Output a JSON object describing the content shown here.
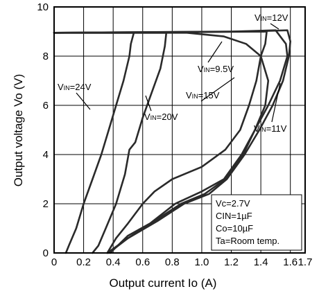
{
  "chart_data": {
    "type": "line",
    "xlabel": "Output current Io (A)",
    "ylabel": "Output voltage Vo (V)",
    "xlim": [
      0,
      1.7
    ],
    "ylim": [
      0,
      10
    ],
    "x_ticks": [
      "0",
      "0.2",
      "0.4",
      "0.6",
      "0.8",
      "1.0",
      "1.2",
      "1.4",
      "1.6",
      "1.7"
    ],
    "y_ticks": [
      "0",
      "2",
      "4",
      "6",
      "8",
      "10"
    ],
    "grid": true,
    "conditions": [
      "Vc=2.7V",
      "CIN=1µF",
      "Co=10µF",
      "Ta=Room temp."
    ],
    "series": [
      {
        "name": "VIN=24V",
        "points": [
          [
            0,
            8.95
          ],
          [
            0.3,
            8.95
          ],
          [
            0.54,
            8.95
          ],
          [
            0.52,
            8.5
          ],
          [
            0.51,
            8.0
          ],
          [
            0.47,
            7.0
          ],
          [
            0.42,
            6.0
          ],
          [
            0.37,
            5.0
          ],
          [
            0.32,
            4.0
          ],
          [
            0.26,
            3.0
          ],
          [
            0.2,
            2.0
          ],
          [
            0.15,
            1.0
          ],
          [
            0.1,
            0.3
          ],
          [
            0.08,
            0
          ]
        ]
      },
      {
        "name": "VIN=20V",
        "points": [
          [
            0,
            8.95
          ],
          [
            0.5,
            8.95
          ],
          [
            0.76,
            8.95
          ],
          [
            0.75,
            8.4
          ],
          [
            0.72,
            7.5
          ],
          [
            0.66,
            6.5
          ],
          [
            0.6,
            5.5
          ],
          [
            0.55,
            4.5
          ],
          [
            0.51,
            4.2
          ],
          [
            0.48,
            3.2
          ],
          [
            0.42,
            2.0
          ],
          [
            0.35,
            1.0
          ],
          [
            0.3,
            0.3
          ],
          [
            0.26,
            0
          ]
        ]
      },
      {
        "name": "VIN=15V",
        "points": [
          [
            0,
            8.95
          ],
          [
            1.0,
            8.98
          ],
          [
            1.44,
            9.0
          ],
          [
            1.43,
            8.5
          ],
          [
            1.4,
            8.0
          ],
          [
            1.37,
            7.0
          ],
          [
            1.32,
            6.0
          ],
          [
            1.26,
            5.0
          ],
          [
            1.16,
            4.2
          ],
          [
            1.0,
            3.5
          ],
          [
            0.8,
            3.0
          ],
          [
            0.68,
            2.5
          ],
          [
            0.6,
            2.0
          ],
          [
            0.5,
            1.2
          ],
          [
            0.42,
            0.6
          ],
          [
            0.36,
            0
          ]
        ]
      },
      {
        "name": "VIN=12V",
        "points": [
          [
            0,
            8.95
          ],
          [
            1.2,
            9.0
          ],
          [
            1.5,
            9.05
          ],
          [
            1.57,
            8.5
          ],
          [
            1.58,
            8.0
          ],
          [
            1.53,
            7.0
          ],
          [
            1.45,
            6.0
          ],
          [
            1.36,
            5.0
          ],
          [
            1.27,
            4.0
          ],
          [
            1.15,
            3.0
          ],
          [
            1.0,
            2.5
          ],
          [
            0.82,
            2.0
          ],
          [
            0.65,
            1.2
          ],
          [
            0.5,
            0.7
          ],
          [
            0.38,
            0
          ]
        ]
      },
      {
        "name": "VIN=11V",
        "points": [
          [
            0,
            8.95
          ],
          [
            1.3,
            9.0
          ],
          [
            1.58,
            9.05
          ],
          [
            1.6,
            8.6
          ],
          [
            1.59,
            8.0
          ],
          [
            1.55,
            7.0
          ],
          [
            1.48,
            6.0
          ],
          [
            1.39,
            5.0
          ],
          [
            1.29,
            4.0
          ],
          [
            1.17,
            3.0
          ],
          [
            1.05,
            2.4
          ],
          [
            0.88,
            2.0
          ],
          [
            0.7,
            1.3
          ],
          [
            0.5,
            0.6
          ],
          [
            0.36,
            0
          ]
        ]
      },
      {
        "name": "VIN=9.5V",
        "points": [
          [
            0,
            8.95
          ],
          [
            0.9,
            8.95
          ],
          [
            1.15,
            8.8
          ],
          [
            1.3,
            8.5
          ],
          [
            1.4,
            8.0
          ],
          [
            1.45,
            7.0
          ],
          [
            1.43,
            6.0
          ],
          [
            1.36,
            5.0
          ],
          [
            1.28,
            4.0
          ],
          [
            1.16,
            3.0
          ],
          [
            1.02,
            2.4
          ],
          [
            0.86,
            2.0
          ],
          [
            0.68,
            1.3
          ],
          [
            0.5,
            0.6
          ],
          [
            0.37,
            0
          ]
        ]
      }
    ],
    "curve_labels": [
      {
        "series": 0,
        "main": "V",
        "sub": "IN",
        "tail": "=24V"
      },
      {
        "series": 1,
        "main": "V",
        "sub": "IN",
        "tail": "=20V"
      },
      {
        "series": 2,
        "main": "V",
        "sub": "IN",
        "tail": "=15V"
      },
      {
        "series": 3,
        "main": "V",
        "sub": "IN",
        "tail": "=12V"
      },
      {
        "series": 4,
        "main": "V",
        "sub": "IN",
        "tail": "=11V"
      },
      {
        "series": 5,
        "main": "V",
        "sub": "IN",
        "tail": "=9.5V"
      }
    ]
  }
}
